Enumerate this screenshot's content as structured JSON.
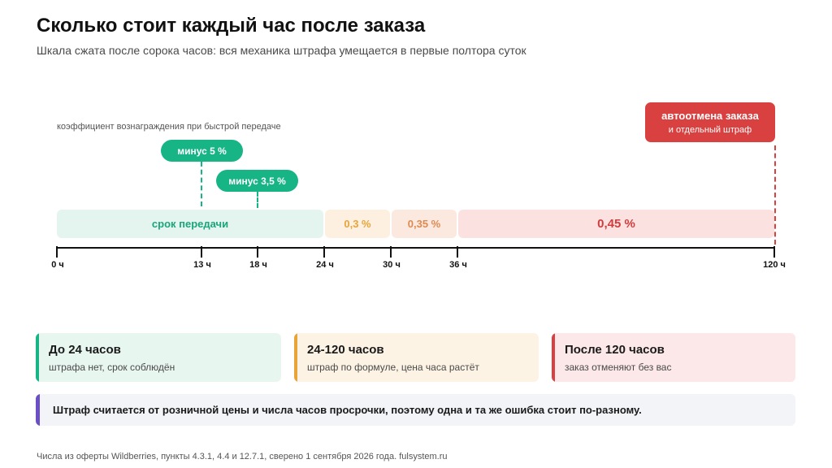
{
  "header": {
    "title": "Сколько стоит каждый час после заказа",
    "subtitle": "Шкала сжата после сорока часов: вся механика штрафа умещается в первые полтора суток"
  },
  "timeline": {
    "coef_label": "коэффициент вознаграждения при быстрой передаче",
    "pills": [
      {
        "label": "минус 5 %",
        "hour": 13
      },
      {
        "label": "минус 3,5 %",
        "hour": 18
      }
    ],
    "autocancel": {
      "title": "автоотмена заказа",
      "subtitle": "и отдельный штраф",
      "hour": 120
    },
    "segments": [
      {
        "label": "срок передачи",
        "from": 0,
        "to": 24
      },
      {
        "label": "0,3 %",
        "from": 24,
        "to": 30
      },
      {
        "label": "0,35 %",
        "from": 30,
        "to": 36
      },
      {
        "label": "0,45 %",
        "from": 36,
        "to": 120
      }
    ],
    "ticks": [
      {
        "hour": 0,
        "label": "0 ч"
      },
      {
        "hour": 13,
        "label": "13 ч"
      },
      {
        "hour": 18,
        "label": "18 ч"
      },
      {
        "hour": 24,
        "label": "24 ч"
      },
      {
        "hour": 30,
        "label": "30 ч"
      },
      {
        "hour": 36,
        "label": "36 ч"
      },
      {
        "hour": 120,
        "label": "120 ч"
      }
    ]
  },
  "cards": [
    {
      "title": "До 24 часов",
      "desc": "штрафа нет, срок соблюдён",
      "color": "#17b486"
    },
    {
      "title": "24-120 часов",
      "desc": "штраф по формуле, цена часа растёт",
      "color": "#e7a43b"
    },
    {
      "title": "После 120 часов",
      "desc": "заказ отменяют без вас",
      "color": "#d94141"
    }
  ],
  "note": {
    "text": "Штраф считается от розничной цены и числа часов просрочки, поэтому одна и та же ошибка стоит по-разному.",
    "color": "#6b4fc7"
  },
  "footer": {
    "text": "Числа из оферты Wildberries, пункты 4.3.1, 4.4 и 12.7.1, сверено 1 сентября 2026 года. fulsystem.ru"
  }
}
